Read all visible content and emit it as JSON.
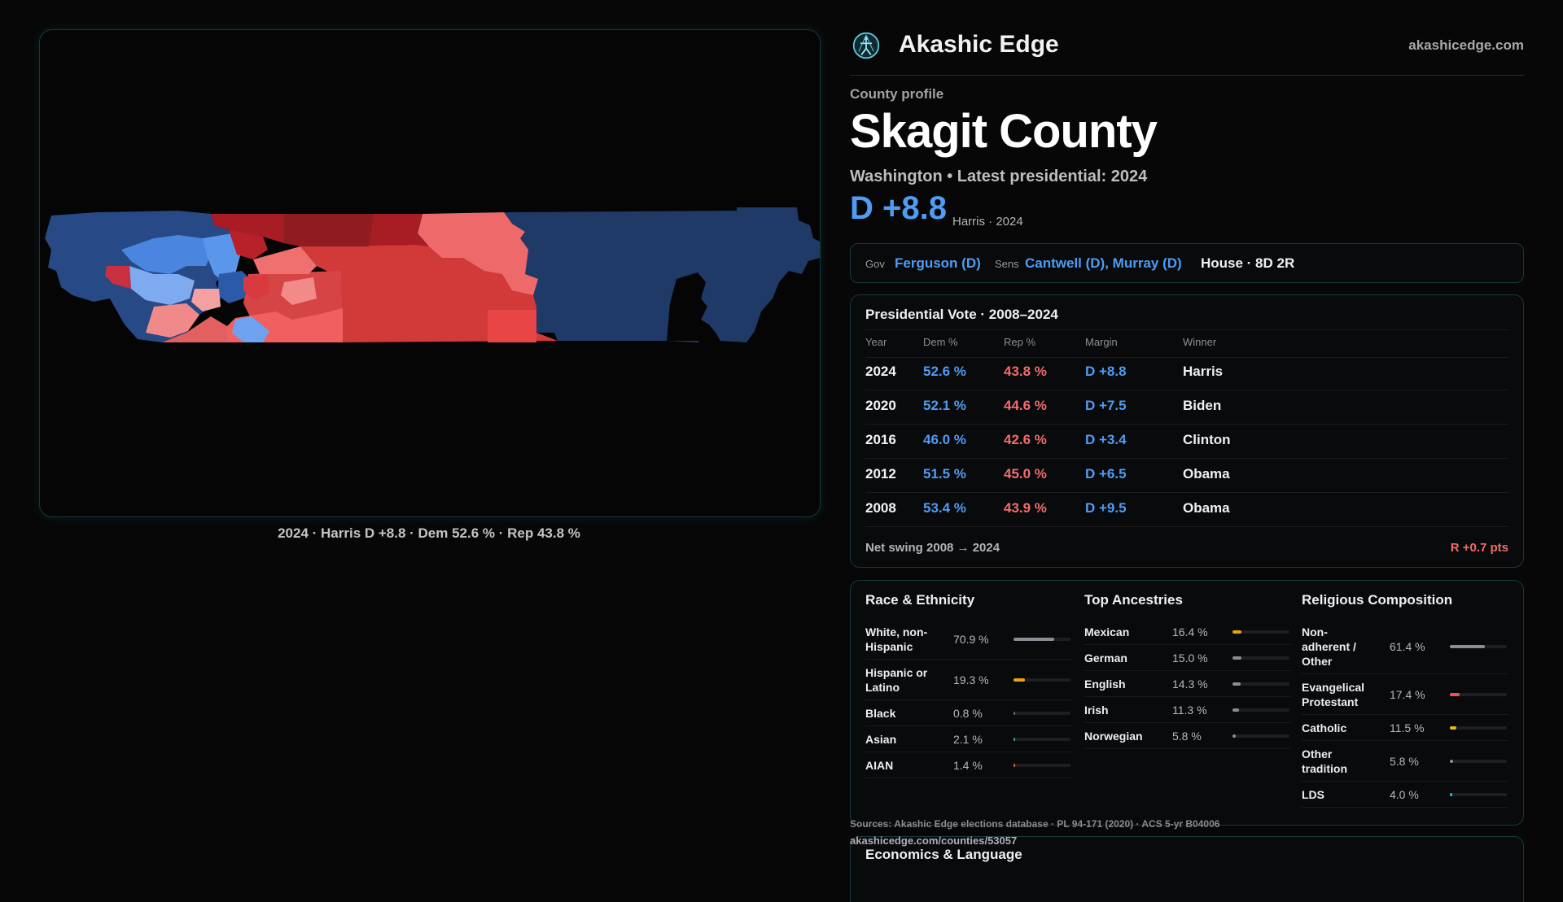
{
  "map": {
    "caption": "2024 · Harris D +8.8 · Dem 52.6 % · Rep 43.8 %"
  },
  "brand": {
    "name": "Akashic Edge",
    "url": "akashicedge.com",
    "logo_icon": "compass-figure-icon"
  },
  "profile": {
    "label": "County profile",
    "title": "Skagit County",
    "subtitle": "Washington • Latest presidential: 2024",
    "margin": "D +8.8",
    "margin_sub": "Harris · 2024"
  },
  "officials": {
    "gov_label": "Gov",
    "gov": "Ferguson (D)",
    "sens_label": "Sens",
    "sens": "Cantwell (D), Murray (D)",
    "house": "House · 8D 2R"
  },
  "presidential": {
    "title": "Presidential Vote · 2008–2024",
    "headers": {
      "year": "Year",
      "dem": "Dem %",
      "rep": "Rep %",
      "margin": "Margin",
      "winner": "Winner"
    },
    "rows": [
      {
        "year": "2024",
        "dem": "52.6 %",
        "rep": "43.8 %",
        "margin": "D +8.8",
        "winner": "Harris"
      },
      {
        "year": "2020",
        "dem": "52.1 %",
        "rep": "44.6 %",
        "margin": "D +7.5",
        "winner": "Biden"
      },
      {
        "year": "2016",
        "dem": "46.0 %",
        "rep": "42.6 %",
        "margin": "D +3.4",
        "winner": "Clinton"
      },
      {
        "year": "2012",
        "dem": "51.5 %",
        "rep": "45.0 %",
        "margin": "D +6.5",
        "winner": "Obama"
      },
      {
        "year": "2008",
        "dem": "53.4 %",
        "rep": "43.9 %",
        "margin": "D +9.5",
        "winner": "Obama"
      }
    ],
    "swing_label": "Net swing 2008 → 2024",
    "swing_value": "R +0.7 pts"
  },
  "race": {
    "title": "Race & Ethnicity",
    "items": [
      {
        "label": "White, non-\nHispanic",
        "value": "70.9 %",
        "pct": 70.9,
        "color": "#8a8d96"
      },
      {
        "label": "Hispanic or\nLatino",
        "value": "19.3 %",
        "pct": 19.3,
        "color": "#e8a21a"
      },
      {
        "label": "Black",
        "value": "0.8 %",
        "pct": 0.8,
        "color": "#6b6b70"
      },
      {
        "label": "Asian",
        "value": "2.1 %",
        "pct": 2.1,
        "color": "#3fb57a"
      },
      {
        "label": "AIAN",
        "value": "1.4 %",
        "pct": 1.4,
        "color": "#e06a4a"
      }
    ]
  },
  "ancestry": {
    "title": "Top Ancestries",
    "items": [
      {
        "label": "Mexican",
        "value": "16.4 %",
        "pct": 16.4,
        "color": "#e8a21a"
      },
      {
        "label": "German",
        "value": "15.0 %",
        "pct": 15.0,
        "color": "#8a8d96"
      },
      {
        "label": "English",
        "value": "14.3 %",
        "pct": 14.3,
        "color": "#8a8d96"
      },
      {
        "label": "Irish",
        "value": "11.3 %",
        "pct": 11.3,
        "color": "#8a8d96"
      },
      {
        "label": "Norwegian",
        "value": "5.8 %",
        "pct": 5.8,
        "color": "#8a8d96"
      }
    ]
  },
  "religion": {
    "title": "Religious Composition",
    "items": [
      {
        "label": "Non-\nadherent /\nOther",
        "value": "61.4 %",
        "pct": 61.4,
        "color": "#8a8d96"
      },
      {
        "label": "Evangelical\nProtestant",
        "value": "17.4 %",
        "pct": 17.4,
        "color": "#f0506a"
      },
      {
        "label": "Catholic",
        "value": "11.5 %",
        "pct": 11.5,
        "color": "#e8b820"
      },
      {
        "label": "Other\ntradition",
        "value": "5.8 %",
        "pct": 5.8,
        "color": "#8a8d96"
      },
      {
        "label": "LDS",
        "value": "4.0 %",
        "pct": 4.0,
        "color": "#2bb0d8"
      }
    ]
  },
  "sources": "Sources: Akashic Edge elections database · PL 94-171 (2020) · ACS 5-yr B04006",
  "source_url": "akashicedge.com/counties/53057",
  "economics": {
    "title": "Economics & Language"
  }
}
